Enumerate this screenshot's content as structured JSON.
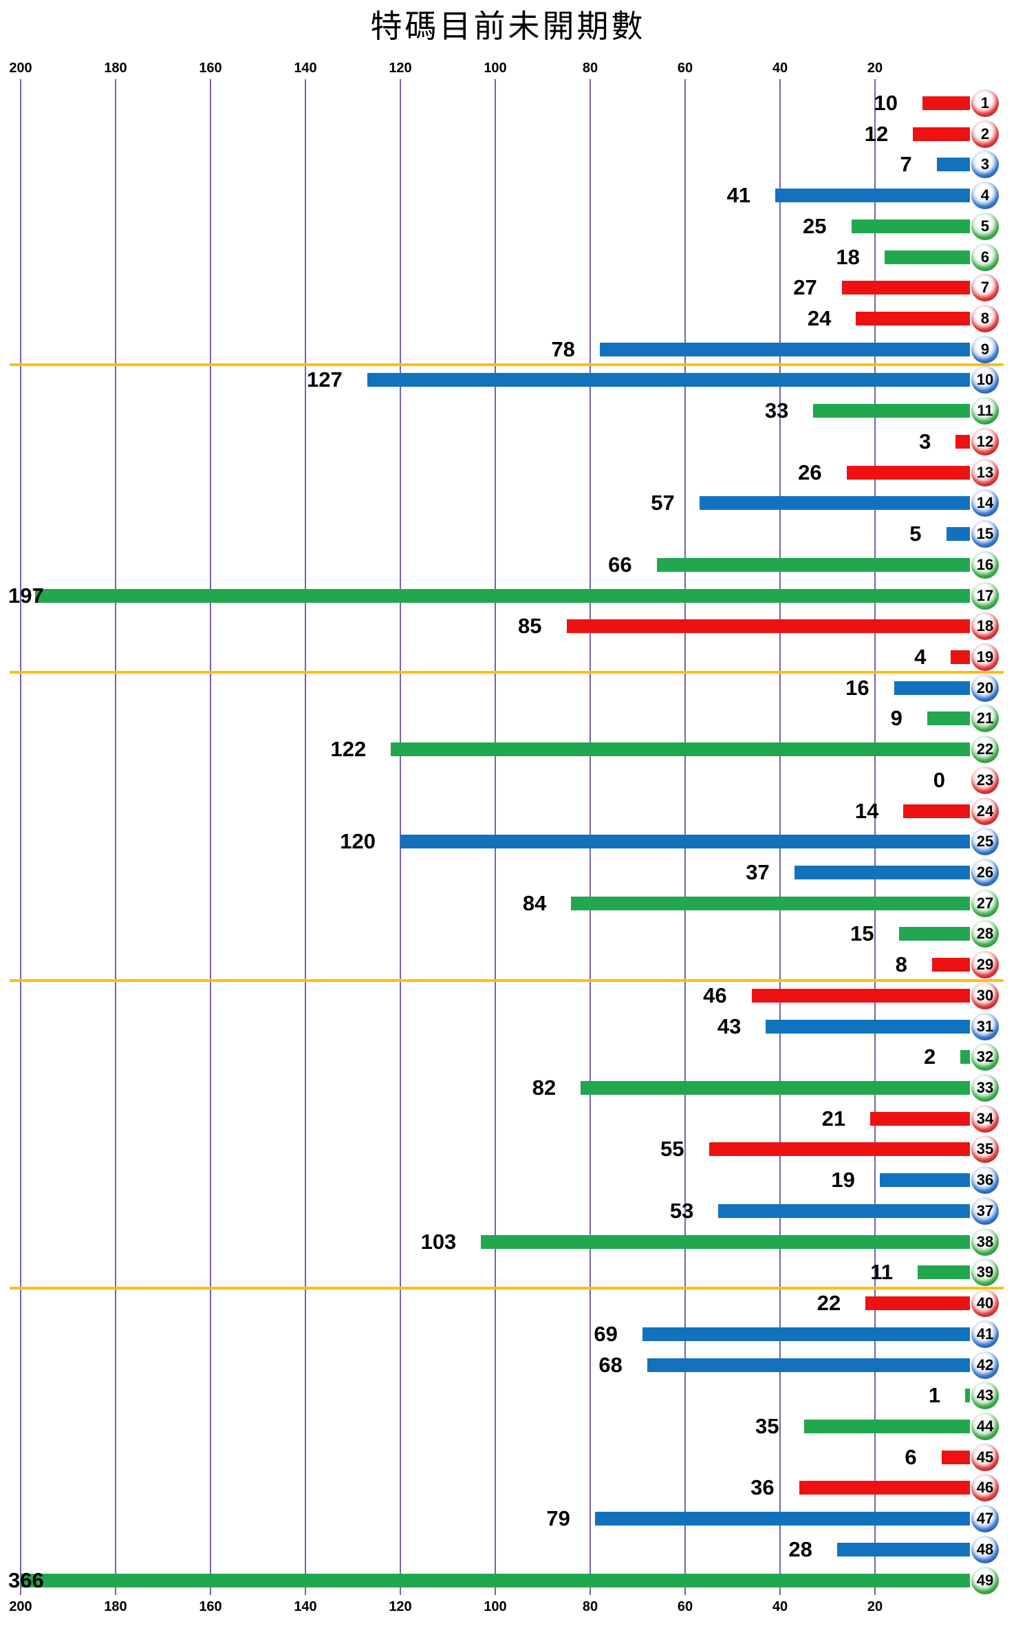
{
  "chart_data": {
    "type": "bar",
    "orientation": "horizontal",
    "title": "特碼目前未開期數",
    "xlabel": "",
    "ylabel": "",
    "axis": {
      "ticks": [
        200,
        180,
        160,
        140,
        120,
        100,
        80,
        60,
        40,
        20
      ],
      "range": [
        0,
        200
      ],
      "direction": "right-to-left",
      "position": "top-and-bottom",
      "grid": true,
      "gridline_color": "#7C5FA8"
    },
    "categories": [
      1,
      2,
      3,
      4,
      5,
      6,
      7,
      8,
      9,
      10,
      11,
      12,
      13,
      14,
      15,
      16,
      17,
      18,
      19,
      20,
      21,
      22,
      23,
      24,
      25,
      26,
      27,
      28,
      29,
      30,
      31,
      32,
      33,
      34,
      35,
      36,
      37,
      38,
      39,
      40,
      41,
      42,
      43,
      44,
      45,
      46,
      47,
      48,
      49
    ],
    "values": [
      10,
      12,
      7,
      41,
      25,
      18,
      27,
      24,
      78,
      127,
      33,
      3,
      26,
      57,
      5,
      66,
      197,
      85,
      4,
      16,
      9,
      122,
      0,
      14,
      120,
      37,
      84,
      15,
      8,
      46,
      43,
      2,
      82,
      21,
      55,
      19,
      53,
      103,
      11,
      22,
      69,
      68,
      1,
      35,
      6,
      36,
      79,
      28,
      366
    ],
    "bar_colors": [
      "red",
      "red",
      "blue",
      "blue",
      "green",
      "green",
      "red",
      "red",
      "blue",
      "blue",
      "green",
      "red",
      "red",
      "blue",
      "blue",
      "green",
      "green",
      "red",
      "red",
      "blue",
      "green",
      "green",
      "red",
      "red",
      "blue",
      "blue",
      "green",
      "green",
      "red",
      "red",
      "blue",
      "green",
      "green",
      "red",
      "red",
      "blue",
      "blue",
      "green",
      "green",
      "red",
      "blue",
      "blue",
      "green",
      "green",
      "red",
      "red",
      "blue",
      "blue",
      "green"
    ],
    "palette": {
      "red": "#EE1111",
      "blue": "#1272BE",
      "green": "#21A74E"
    },
    "ball_palette": {
      "red": "#C01020",
      "blue": "#1B55A4",
      "green": "#1F8A31"
    },
    "separator_color": "#FFC000",
    "separators_after_category": [
      9,
      19,
      29,
      39
    ],
    "clamp_at": 200,
    "legend": "none"
  }
}
